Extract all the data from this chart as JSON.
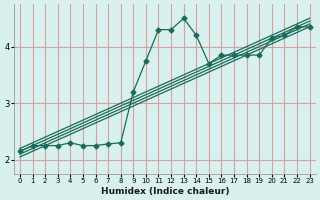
{
  "xlabel": "Humidex (Indice chaleur)",
  "ylabel": "",
  "bg_color": "#d8f0ee",
  "line_color": "#1a6b5a",
  "grid_color": "#d4a0a0",
  "xlim": [
    -0.5,
    23.5
  ],
  "ylim": [
    1.75,
    4.75
  ],
  "yticks": [
    2,
    3,
    4
  ],
  "xticks": [
    0,
    1,
    2,
    3,
    4,
    5,
    6,
    7,
    8,
    9,
    10,
    11,
    12,
    13,
    14,
    15,
    16,
    17,
    18,
    19,
    20,
    21,
    22,
    23
  ],
  "scatter_x": [
    0,
    1,
    2,
    3,
    4,
    5,
    6,
    7,
    8,
    9,
    10,
    11,
    12,
    13,
    14,
    15,
    16,
    17,
    18,
    19,
    20,
    21,
    22,
    23
  ],
  "scatter_y": [
    2.15,
    2.25,
    2.25,
    2.25,
    2.3,
    2.25,
    2.25,
    2.28,
    2.3,
    3.2,
    3.75,
    4.3,
    4.3,
    4.5,
    4.2,
    3.7,
    3.85,
    3.85,
    3.85,
    3.85,
    4.15,
    4.2,
    4.35,
    4.35
  ],
  "reg_lines": [
    {
      "x0": 0,
      "y0": 2.1,
      "x1": 23,
      "y1": 4.4
    },
    {
      "x0": 0,
      "y0": 2.15,
      "x1": 23,
      "y1": 4.45
    },
    {
      "x0": 0,
      "y0": 2.2,
      "x1": 23,
      "y1": 4.5
    },
    {
      "x0": 0,
      "y0": 2.05,
      "x1": 23,
      "y1": 4.35
    }
  ]
}
